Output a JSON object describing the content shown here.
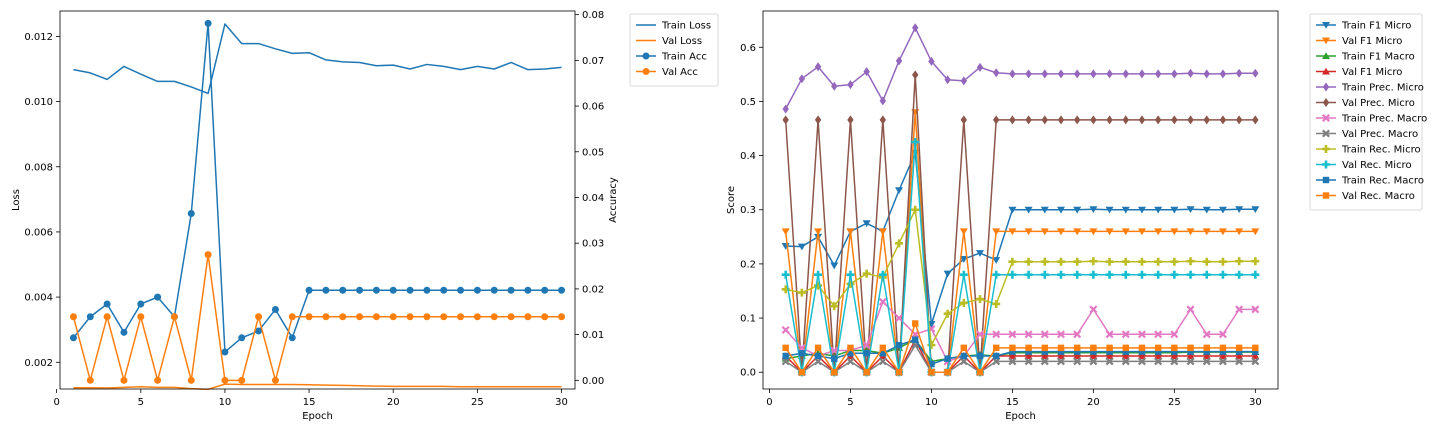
{
  "chart_data": [
    {
      "type": "line",
      "xlabel": "Epoch",
      "ylabel": "Loss",
      "y2label": "Accuracy",
      "legend_position": "outside-right",
      "x": [
        1,
        2,
        3,
        4,
        5,
        6,
        7,
        8,
        9,
        10,
        11,
        12,
        13,
        14,
        15,
        16,
        17,
        18,
        19,
        20,
        21,
        22,
        23,
        24,
        25,
        26,
        27,
        28,
        29,
        30
      ],
      "xlim": [
        0.2,
        30.8
      ],
      "ylim": [
        0.00118,
        0.01278
      ],
      "y2lim": [
        -0.0019,
        0.0808
      ],
      "xticks": [
        {
          "v": 0,
          "label": "0"
        },
        {
          "v": 5,
          "label": "5"
        },
        {
          "v": 10,
          "label": "10"
        },
        {
          "v": 15,
          "label": "15"
        },
        {
          "v": 20,
          "label": "20"
        },
        {
          "v": 25,
          "label": "25"
        },
        {
          "v": 30,
          "label": "30"
        }
      ],
      "yticks": [
        {
          "v": 0.002,
          "label": "0.002"
        },
        {
          "v": 0.004,
          "label": "0.004"
        },
        {
          "v": 0.006,
          "label": "0.006"
        },
        {
          "v": 0.008,
          "label": "0.008"
        },
        {
          "v": 0.01,
          "label": "0.010"
        },
        {
          "v": 0.012,
          "label": "0.012"
        }
      ],
      "y2ticks": [
        {
          "v": 0.0,
          "label": "0.00"
        },
        {
          "v": 0.01,
          "label": "0.01"
        },
        {
          "v": 0.02,
          "label": "0.02"
        },
        {
          "v": 0.03,
          "label": "0.03"
        },
        {
          "v": 0.04,
          "label": "0.04"
        },
        {
          "v": 0.05,
          "label": "0.05"
        },
        {
          "v": 0.06,
          "label": "0.06"
        },
        {
          "v": 0.07,
          "label": "0.07"
        },
        {
          "v": 0.08,
          "label": "0.08"
        }
      ],
      "series": [
        {
          "name": "Train Loss",
          "axis": "left",
          "color": "#1f77b4",
          "marker": "none",
          "values": [
            0.01098,
            0.01088,
            0.01068,
            0.01108,
            0.01084,
            0.01062,
            0.01062,
            0.01045,
            0.01025,
            0.01238,
            0.01178,
            0.01178,
            0.01162,
            0.01148,
            0.0115,
            0.01128,
            0.01122,
            0.0112,
            0.0111,
            0.01112,
            0.011,
            0.01114,
            0.01108,
            0.01098,
            0.01108,
            0.011,
            0.0112,
            0.01098,
            0.011,
            0.01105
          ]
        },
        {
          "name": "Val Loss",
          "axis": "left",
          "color": "#ff7f0e",
          "marker": "none",
          "values": [
            0.00122,
            0.00122,
            0.00121,
            0.00123,
            0.00125,
            0.00123,
            0.00123,
            0.00119,
            0.00117,
            0.00133,
            0.00132,
            0.00132,
            0.00132,
            0.00132,
            0.00131,
            0.0013,
            0.00129,
            0.00128,
            0.00127,
            0.00126,
            0.00126,
            0.00126,
            0.00126,
            0.00125,
            0.00125,
            0.00125,
            0.00125,
            0.00125,
            0.00125,
            0.00125
          ]
        },
        {
          "name": "Train Acc",
          "axis": "right",
          "color": "#1f77b4",
          "marker": "circle",
          "values": [
            0.0093,
            0.0139,
            0.0167,
            0.0105,
            0.0167,
            0.0182,
            0.0139,
            0.0365,
            0.0781,
            0.0062,
            0.0093,
            0.0108,
            0.0155,
            0.0093,
            0.0197,
            0.0197,
            0.0197,
            0.0197,
            0.0197,
            0.0197,
            0.0197,
            0.0197,
            0.0197,
            0.0197,
            0.0197,
            0.0197,
            0.0197,
            0.0197,
            0.0197,
            0.0197
          ]
        },
        {
          "name": "Val Acc",
          "axis": "right",
          "color": "#ff7f0e",
          "marker": "circle",
          "values": [
            0.0139,
            0.0,
            0.0139,
            0.0,
            0.0139,
            0.0,
            0.0139,
            0.0,
            0.0275,
            0.0,
            0.0,
            0.0139,
            0.0,
            0.0139,
            0.0139,
            0.0139,
            0.0139,
            0.0139,
            0.0139,
            0.0139,
            0.0139,
            0.0139,
            0.0139,
            0.0139,
            0.0139,
            0.0139,
            0.0139,
            0.0139,
            0.0139,
            0.0139
          ]
        }
      ]
    },
    {
      "type": "line",
      "xlabel": "Epoch",
      "ylabel": "Score",
      "legend_position": "outside-right",
      "x": [
        1,
        2,
        3,
        4,
        5,
        6,
        7,
        8,
        9,
        10,
        11,
        12,
        13,
        14,
        15,
        16,
        17,
        18,
        19,
        20,
        21,
        22,
        23,
        24,
        25,
        26,
        27,
        28,
        29,
        30
      ],
      "xlim": [
        -0.4,
        31.4
      ],
      "ylim": [
        -0.031,
        0.667
      ],
      "xticks": [
        {
          "v": 0,
          "label": "0"
        },
        {
          "v": 5,
          "label": "5"
        },
        {
          "v": 10,
          "label": "10"
        },
        {
          "v": 15,
          "label": "15"
        },
        {
          "v": 20,
          "label": "20"
        },
        {
          "v": 25,
          "label": "25"
        },
        {
          "v": 30,
          "label": "30"
        }
      ],
      "yticks": [
        {
          "v": 0.0,
          "label": "0.0"
        },
        {
          "v": 0.1,
          "label": "0.1"
        },
        {
          "v": 0.2,
          "label": "0.2"
        },
        {
          "v": 0.3,
          "label": "0.3"
        },
        {
          "v": 0.4,
          "label": "0.4"
        },
        {
          "v": 0.5,
          "label": "0.5"
        },
        {
          "v": 0.6,
          "label": "0.6"
        }
      ],
      "series": [
        {
          "name": "Train F1 Micro",
          "color": "#1f77b4",
          "marker": "tri-down",
          "values": [
            0.233,
            0.232,
            0.25,
            0.197,
            0.26,
            0.275,
            0.26,
            0.336,
            0.405,
            0.089,
            0.182,
            0.209,
            0.22,
            0.207,
            0.3,
            0.3,
            0.3,
            0.3,
            0.3,
            0.301,
            0.3,
            0.3,
            0.3,
            0.3,
            0.3,
            0.301,
            0.3,
            0.3,
            0.301,
            0.301
          ]
        },
        {
          "name": "Val F1 Micro",
          "color": "#ff7f0e",
          "marker": "tri-down",
          "values": [
            0.26,
            0.0,
            0.26,
            0.0,
            0.26,
            0.0,
            0.26,
            0.0,
            0.48,
            0.0,
            0.0,
            0.26,
            0.0,
            0.26,
            0.26,
            0.26,
            0.26,
            0.26,
            0.26,
            0.26,
            0.26,
            0.26,
            0.26,
            0.26,
            0.26,
            0.26,
            0.26,
            0.26,
            0.26,
            0.26
          ]
        },
        {
          "name": "Train F1 Macro",
          "color": "#2ca02c",
          "marker": "tri-up",
          "values": [
            0.025,
            0.03,
            0.035,
            0.03,
            0.04,
            0.04,
            0.035,
            0.045,
            0.06,
            0.02,
            0.025,
            0.03,
            0.032,
            0.03,
            0.036,
            0.036,
            0.036,
            0.036,
            0.036,
            0.036,
            0.036,
            0.036,
            0.036,
            0.036,
            0.036,
            0.037,
            0.037,
            0.037,
            0.037,
            0.037
          ]
        },
        {
          "name": "Val F1 Micro",
          "color": "#d62728",
          "marker": "tri-up",
          "values": [
            0.03,
            0.0,
            0.03,
            0.0,
            0.03,
            0.0,
            0.03,
            0.0,
            0.06,
            0.0,
            0.0,
            0.03,
            0.0,
            0.03,
            0.03,
            0.03,
            0.03,
            0.03,
            0.03,
            0.03,
            0.03,
            0.03,
            0.03,
            0.03,
            0.03,
            0.03,
            0.03,
            0.03,
            0.03,
            0.03
          ]
        },
        {
          "name": "Train Prec. Micro",
          "color": "#9467bd",
          "marker": "diamond",
          "values": [
            0.486,
            0.542,
            0.564,
            0.528,
            0.531,
            0.555,
            0.501,
            0.575,
            0.636,
            0.574,
            0.54,
            0.538,
            0.563,
            0.553,
            0.551,
            0.551,
            0.551,
            0.551,
            0.551,
            0.551,
            0.551,
            0.551,
            0.551,
            0.551,
            0.551,
            0.552,
            0.551,
            0.551,
            0.552,
            0.552
          ]
        },
        {
          "name": "Val Prec. Micro",
          "color": "#8c564b",
          "marker": "diamond",
          "values": [
            0.466,
            0.0,
            0.466,
            0.0,
            0.466,
            0.0,
            0.466,
            0.0,
            0.549,
            0.0,
            0.0,
            0.466,
            0.0,
            0.466,
            0.466,
            0.466,
            0.466,
            0.466,
            0.466,
            0.466,
            0.466,
            0.466,
            0.466,
            0.466,
            0.466,
            0.466,
            0.466,
            0.466,
            0.466,
            0.466
          ]
        },
        {
          "name": "Train Prec. Macro",
          "color": "#e377c2",
          "marker": "x",
          "values": [
            0.078,
            0.045,
            0.03,
            0.04,
            0.04,
            0.05,
            0.13,
            0.1,
            0.07,
            0.08,
            0.02,
            0.03,
            0.07,
            0.07,
            0.07,
            0.07,
            0.07,
            0.07,
            0.07,
            0.116,
            0.07,
            0.07,
            0.07,
            0.07,
            0.07,
            0.116,
            0.07,
            0.07,
            0.116,
            0.116
          ]
        },
        {
          "name": "Val Prec. Macro",
          "color": "#7f7f7f",
          "marker": "x",
          "values": [
            0.02,
            0.0,
            0.02,
            0.0,
            0.02,
            0.0,
            0.02,
            0.0,
            0.05,
            0.0,
            0.0,
            0.02,
            0.0,
            0.02,
            0.02,
            0.02,
            0.02,
            0.02,
            0.02,
            0.02,
            0.02,
            0.02,
            0.02,
            0.02,
            0.02,
            0.02,
            0.02,
            0.02,
            0.02,
            0.02
          ]
        },
        {
          "name": "Train Rec. Micro",
          "color": "#bcbd22",
          "marker": "plus",
          "values": [
            0.153,
            0.147,
            0.16,
            0.122,
            0.163,
            0.182,
            0.175,
            0.238,
            0.3,
            0.05,
            0.108,
            0.128,
            0.135,
            0.126,
            0.204,
            0.204,
            0.204,
            0.204,
            0.204,
            0.205,
            0.204,
            0.204,
            0.204,
            0.204,
            0.204,
            0.205,
            0.204,
            0.204,
            0.205,
            0.205
          ]
        },
        {
          "name": "Val Rec. Micro",
          "color": "#17becf",
          "marker": "plus",
          "values": [
            0.18,
            0.0,
            0.18,
            0.0,
            0.18,
            0.0,
            0.18,
            0.0,
            0.425,
            0.0,
            0.0,
            0.18,
            0.0,
            0.18,
            0.18,
            0.18,
            0.18,
            0.18,
            0.18,
            0.18,
            0.18,
            0.18,
            0.18,
            0.18,
            0.18,
            0.18,
            0.18,
            0.18,
            0.18,
            0.18
          ]
        },
        {
          "name": "Train Rec. Macro",
          "color": "#1f77b4",
          "marker": "square",
          "values": [
            0.03,
            0.035,
            0.03,
            0.025,
            0.035,
            0.035,
            0.035,
            0.05,
            0.06,
            0.015,
            0.025,
            0.03,
            0.03,
            0.03,
            0.038,
            0.038,
            0.038,
            0.038,
            0.038,
            0.038,
            0.038,
            0.038,
            0.038,
            0.038,
            0.038,
            0.038,
            0.038,
            0.038,
            0.038,
            0.038
          ]
        },
        {
          "name": "Val Rec. Macro",
          "color": "#ff7f0e",
          "marker": "square",
          "values": [
            0.045,
            0.0,
            0.045,
            0.0,
            0.045,
            0.0,
            0.045,
            0.0,
            0.09,
            0.0,
            0.0,
            0.045,
            0.0,
            0.045,
            0.045,
            0.045,
            0.045,
            0.045,
            0.045,
            0.045,
            0.045,
            0.045,
            0.045,
            0.045,
            0.045,
            0.045,
            0.045,
            0.045,
            0.045,
            0.045
          ]
        }
      ]
    }
  ]
}
